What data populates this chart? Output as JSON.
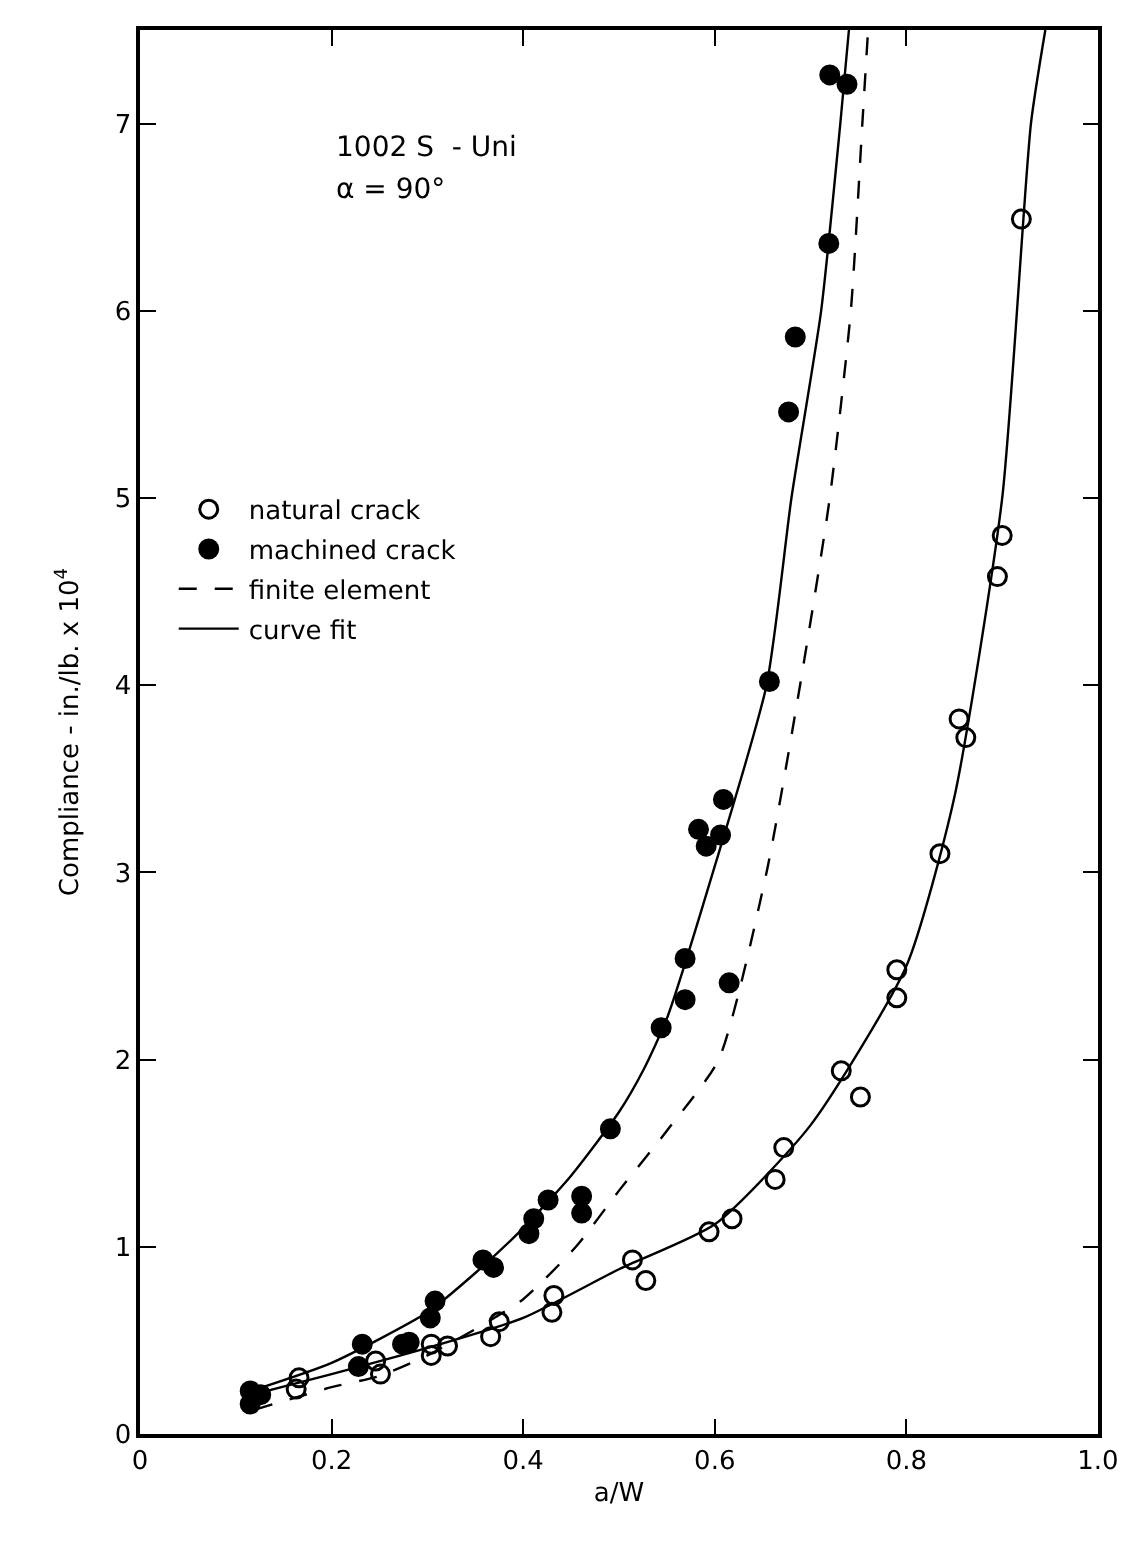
{
  "chart_data": {
    "type": "scatter",
    "xlabel": "a/W",
    "ylabel": "Compliance - in./lb. x 10$^{4}$",
    "annotations": [
      "1002 S  - Uni",
      "α = 90°"
    ],
    "xlim": [
      0,
      1.0
    ],
    "ylim": [
      0,
      7.5
    ],
    "xticks": [
      0,
      0.2,
      0.4,
      0.6,
      0.8,
      {
        "value": 1.0,
        "label": "1.0"
      }
    ],
    "yticks": [
      0,
      1,
      2,
      3,
      4,
      5,
      6,
      7
    ],
    "legend": "left",
    "series": [
      {
        "name": "natural crack",
        "marker": "circle_open",
        "color": "#000000",
        "x": [
          0.163,
          0.166,
          0.246,
          0.251,
          0.304,
          0.304,
          0.321,
          0.366,
          0.375,
          0.43,
          0.432,
          0.514,
          0.528,
          0.594,
          0.618,
          0.663,
          0.672,
          0.732,
          0.752,
          0.79,
          0.79,
          0.835,
          0.855,
          0.862,
          0.895,
          0.9,
          0.92
        ],
        "values": [
          0.24,
          0.3,
          0.39,
          0.32,
          0.48,
          0.42,
          0.47,
          0.52,
          0.6,
          0.65,
          0.74,
          0.93,
          0.82,
          1.08,
          1.15,
          1.36,
          1.53,
          1.94,
          1.8,
          2.48,
          2.33,
          3.1,
          3.82,
          3.72,
          4.58,
          4.8,
          6.49
        ]
      },
      {
        "name": "machined crack",
        "marker": "circle",
        "color": "#000000",
        "x": [
          0.115,
          0.115,
          0.126,
          0.228,
          0.232,
          0.274,
          0.281,
          0.303,
          0.308,
          0.358,
          0.369,
          0.406,
          0.411,
          0.426,
          0.461,
          0.461,
          0.491,
          0.544,
          0.569,
          0.569,
          0.615,
          0.583,
          0.591,
          0.606,
          0.609,
          0.657,
          0.677,
          0.684,
          0.719,
          0.72,
          0.738
        ],
        "values": [
          0.23,
          0.16,
          0.21,
          0.36,
          0.48,
          0.48,
          0.49,
          0.62,
          0.71,
          0.93,
          0.89,
          1.07,
          1.15,
          1.25,
          1.27,
          1.18,
          1.63,
          2.17,
          2.32,
          2.54,
          2.41,
          3.23,
          3.14,
          3.2,
          3.39,
          4.02,
          5.46,
          5.86,
          6.36,
          7.26,
          7.21
        ]
      },
      {
        "name": "finite element",
        "type": "line",
        "marker": "none",
        "line_style": "dashed",
        "color": "#000000",
        "x": [
          0.12,
          0.2,
          0.25,
          0.3,
          0.35,
          0.4,
          0.455,
          0.5,
          0.55,
          0.604,
          0.654,
          0.689,
          0.72,
          0.742,
          0.754,
          0.76
        ],
        "values": [
          0.13,
          0.25,
          0.31,
          0.42,
          0.56,
          0.72,
          1.0,
          1.3,
          1.62,
          2.0,
          3.0,
          4.0,
          5.0,
          6.0,
          7.0,
          7.5
        ]
      },
      {
        "name": "curve fit",
        "type": "line",
        "marker": "none",
        "line_style": "solid",
        "color": "#000000",
        "x": [
          0.11,
          0.2,
          0.3,
          0.35,
          0.4,
          0.45,
          0.5,
          0.526,
          0.55,
          0.598,
          0.654,
          0.68,
          0.711,
          0.731,
          0.74
        ],
        "values": [
          0.22,
          0.38,
          0.65,
          0.86,
          1.1,
          1.38,
          1.72,
          1.95,
          2.22,
          3.0,
          4.0,
          5.0,
          6.0,
          7.0,
          7.5
        ]
      },
      {
        "type": "line",
        "marker": "none",
        "line_style": "solid",
        "color": "#000000",
        "x": [
          0.11,
          0.2,
          0.3,
          0.4,
          0.5,
          0.6,
          0.7,
          0.8,
          0.85,
          0.9,
          0.93,
          0.945
        ],
        "values": [
          0.2,
          0.32,
          0.46,
          0.62,
          0.88,
          1.12,
          1.65,
          2.5,
          3.4,
          5.0,
          7.0,
          7.5
        ]
      }
    ]
  }
}
